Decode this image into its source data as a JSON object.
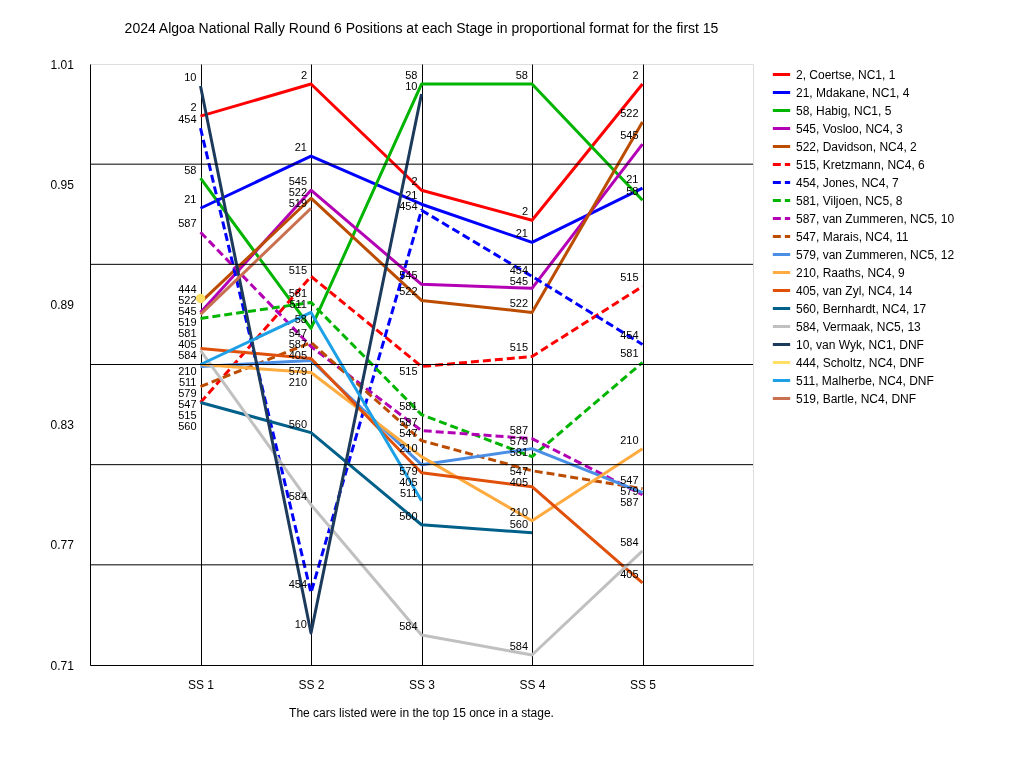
{
  "chart_data": {
    "type": "line",
    "title": "2024 Algoa National Rally Round 6  Positions at each Stage in proportional format for the first 15",
    "categories": [
      "SS 1",
      "SS 2",
      "SS 3",
      "SS 4",
      "SS 5"
    ],
    "ylim": [
      0.71,
      1.01
    ],
    "yticks": [
      0.71,
      0.77,
      0.83,
      0.89,
      0.95,
      1.01
    ],
    "grid": "x",
    "legend": "right",
    "marker": "none",
    "ref_lines": [
      {
        "axis": "y",
        "value": 0.76,
        "color": "#000000"
      },
      {
        "axis": "y",
        "value": 0.81,
        "color": "#000000"
      },
      {
        "axis": "y",
        "value": 0.86,
        "color": "#000000"
      },
      {
        "axis": "y",
        "value": 0.91,
        "color": "#000000"
      },
      {
        "axis": "y",
        "value": 0.96,
        "color": "#000000"
      }
    ],
    "annotations": [
      "The cars listed were in the top 15 once in a stage.",
      {
        "text": "2",
        "x": "SS 1",
        "y": 0.984
      },
      {
        "text": "2",
        "x": "SS 2",
        "y": 1.0
      },
      {
        "text": "2",
        "x": "SS 3",
        "y": 0.947
      },
      {
        "text": "2",
        "x": "SS 4",
        "y": 0.932
      },
      {
        "text": "2",
        "x": "SS 5",
        "y": 1.0
      },
      {
        "text": "21",
        "x": "SS 1",
        "y": 0.938
      },
      {
        "text": "21",
        "x": "SS 2",
        "y": 0.964
      },
      {
        "text": "21",
        "x": "SS 3",
        "y": 0.94
      },
      {
        "text": "21",
        "x": "SS 4",
        "y": 0.921
      },
      {
        "text": "21",
        "x": "SS 5",
        "y": 0.948
      },
      {
        "text": "58",
        "x": "SS 1",
        "y": 0.953
      },
      {
        "text": "58",
        "x": "SS 2",
        "y": 0.878
      },
      {
        "text": "58",
        "x": "SS 3",
        "y": 1.0
      },
      {
        "text": "58",
        "x": "SS 4",
        "y": 1.0
      },
      {
        "text": "58",
        "x": "SS 5",
        "y": 0.942
      },
      {
        "text": "545",
        "x": "SS 1",
        "y": 0.886
      },
      {
        "text": "545",
        "x": "SS 2",
        "y": 0.947
      },
      {
        "text": "545",
        "x": "SS 3",
        "y": 0.9
      },
      {
        "text": "545",
        "x": "SS 4",
        "y": 0.898
      },
      {
        "text": "545",
        "x": "SS 5",
        "y": 0.97
      },
      {
        "text": "522",
        "x": "SS 1",
        "y": 0.891
      },
      {
        "text": "522",
        "x": "SS 2",
        "y": 0.943
      },
      {
        "text": "522",
        "x": "SS 3",
        "y": 0.892
      },
      {
        "text": "522",
        "x": "SS 4",
        "y": 0.886
      },
      {
        "text": "522",
        "x": "SS 5",
        "y": 0.981
      },
      {
        "text": "515",
        "x": "SS 1",
        "y": 0.841
      },
      {
        "text": "515",
        "x": "SS 2",
        "y": 0.904
      },
      {
        "text": "515",
        "x": "SS 3",
        "y": 0.859
      },
      {
        "text": "515",
        "x": "SS 4",
        "y": 0.864
      },
      {
        "text": "515",
        "x": "SS 5",
        "y": 0.899
      },
      {
        "text": "454",
        "x": "SS 1",
        "y": 0.978
      },
      {
        "text": "454",
        "x": "SS 2",
        "y": 0.746
      },
      {
        "text": "454",
        "x": "SS 3",
        "y": 0.937
      },
      {
        "text": "454",
        "x": "SS 4",
        "y": 0.904
      },
      {
        "text": "454",
        "x": "SS 5",
        "y": 0.87
      },
      {
        "text": "581",
        "x": "SS 1",
        "y": 0.883
      },
      {
        "text": "581",
        "x": "SS 2",
        "y": 0.891
      },
      {
        "text": "581",
        "x": "SS 3",
        "y": 0.835
      },
      {
        "text": "581",
        "x": "SS 4",
        "y": 0.814
      },
      {
        "text": "581",
        "x": "SS 5",
        "y": 0.861
      },
      {
        "text": "587",
        "x": "SS 1",
        "y": 0.926
      },
      {
        "text": "587",
        "x": "SS 2",
        "y": 0.869
      },
      {
        "text": "587",
        "x": "SS 3",
        "y": 0.827
      },
      {
        "text": "587",
        "x": "SS 4",
        "y": 0.823
      },
      {
        "text": "587",
        "x": "SS 5",
        "y": 0.795
      },
      {
        "text": "547",
        "x": "SS 1",
        "y": 0.849
      },
      {
        "text": "547",
        "x": "SS 2",
        "y": 0.871
      },
      {
        "text": "547",
        "x": "SS 3",
        "y": 0.822
      },
      {
        "text": "547",
        "x": "SS 4",
        "y": 0.807
      },
      {
        "text": "547",
        "x": "SS 5",
        "y": 0.798
      },
      {
        "text": "579",
        "x": "SS 1",
        "y": 0.859
      },
      {
        "text": "579",
        "x": "SS 2",
        "y": 0.862
      },
      {
        "text": "579",
        "x": "SS 3",
        "y": 0.81
      },
      {
        "text": "579",
        "x": "SS 4",
        "y": 0.818
      },
      {
        "text": "579",
        "x": "SS 5",
        "y": 0.796
      },
      {
        "text": "210",
        "x": "SS 1",
        "y": 0.86
      },
      {
        "text": "210",
        "x": "SS 2",
        "y": 0.856
      },
      {
        "text": "210",
        "x": "SS 3",
        "y": 0.814
      },
      {
        "text": "210",
        "x": "SS 4",
        "y": 0.782
      },
      {
        "text": "210",
        "x": "SS 5",
        "y": 0.818
      },
      {
        "text": "405",
        "x": "SS 1",
        "y": 0.868
      },
      {
        "text": "405",
        "x": "SS 2",
        "y": 0.863
      },
      {
        "text": "405",
        "x": "SS 3",
        "y": 0.806
      },
      {
        "text": "405",
        "x": "SS 4",
        "y": 0.799
      },
      {
        "text": "405",
        "x": "SS 5",
        "y": 0.751
      },
      {
        "text": "560",
        "x": "SS 1",
        "y": 0.841
      },
      {
        "text": "560",
        "x": "SS 2",
        "y": 0.826
      },
      {
        "text": "560",
        "x": "SS 3",
        "y": 0.78
      },
      {
        "text": "560",
        "x": "SS 4",
        "y": 0.776
      },
      {
        "text": "584",
        "x": "SS 1",
        "y": 0.867
      },
      {
        "text": "584",
        "x": "SS 2",
        "y": 0.79
      },
      {
        "text": "584",
        "x": "SS 3",
        "y": 0.725
      },
      {
        "text": "584",
        "x": "SS 4",
        "y": 0.715
      },
      {
        "text": "584",
        "x": "SS 5",
        "y": 0.767
      },
      {
        "text": "10",
        "x": "SS 1",
        "y": 0.999
      },
      {
        "text": "10",
        "x": "SS 2",
        "y": 0.726
      },
      {
        "text": "10",
        "x": "SS 3",
        "y": 0.995
      },
      {
        "text": "444",
        "x": "SS 1",
        "y": 0.893
      },
      {
        "text": "511",
        "x": "SS 1",
        "y": 0.86
      },
      {
        "text": "511",
        "x": "SS 2",
        "y": 0.886
      },
      {
        "text": "511",
        "x": "SS 3",
        "y": 0.792
      },
      {
        "text": "519",
        "x": "SS 1",
        "y": 0.885
      },
      {
        "text": "519",
        "x": "SS 2",
        "y": 0.938
      }
    ],
    "series": [
      {
        "name": "2, Coertse, NC1, 1",
        "color": "#ff0000",
        "line_style": "solid",
        "values": [
          0.984,
          1.0,
          0.947,
          0.932,
          1.0
        ]
      },
      {
        "name": "21, Mdakane, NC1, 4",
        "color": "#0000ff",
        "line_style": "solid",
        "values": [
          0.938,
          0.964,
          0.94,
          0.921,
          0.948
        ]
      },
      {
        "name": "58, Habig, NC1, 5",
        "color": "#00b400",
        "line_style": "solid",
        "values": [
          0.953,
          0.878,
          1.0,
          1.0,
          0.942
        ]
      },
      {
        "name": "545, Vosloo, NC4, 3",
        "color": "#b400b4",
        "line_style": "solid",
        "values": [
          0.886,
          0.947,
          0.9,
          0.898,
          0.97
        ]
      },
      {
        "name": "522, Davidson, NC4, 2",
        "color": "#bc4c00",
        "line_style": "solid",
        "values": [
          0.891,
          0.943,
          0.892,
          0.886,
          0.981
        ]
      },
      {
        "name": "515, Kretzmann, NC4, 6",
        "color": "#ff0000",
        "line_style": "dashed",
        "values": [
          0.841,
          0.904,
          0.859,
          0.864,
          0.899
        ]
      },
      {
        "name": "454, Jones, NC4, 7",
        "color": "#0000ff",
        "line_style": "dashed",
        "values": [
          0.978,
          0.746,
          0.937,
          0.904,
          0.87
        ]
      },
      {
        "name": "581, Viljoen, NC5, 8",
        "color": "#00b400",
        "line_style": "dashed",
        "values": [
          0.883,
          0.891,
          0.835,
          0.814,
          0.861
        ]
      },
      {
        "name": "587, van Zummeren, NC5, 10",
        "color": "#b400b4",
        "line_style": "dashed",
        "values": [
          0.926,
          0.869,
          0.827,
          0.823,
          0.795
        ]
      },
      {
        "name": "547, Marais, NC4, 11",
        "color": "#bc4c00",
        "line_style": "dashed",
        "values": [
          0.849,
          0.871,
          0.822,
          0.807,
          0.798
        ]
      },
      {
        "name": "579, van Zummeren, NC5, 12",
        "color": "#4a8ee6",
        "line_style": "solid",
        "values": [
          0.859,
          0.862,
          0.81,
          0.818,
          0.796
        ]
      },
      {
        "name": "210, Raaths, NC4, 9",
        "color": "#ffab40",
        "line_style": "solid",
        "values": [
          0.86,
          0.856,
          0.814,
          0.782,
          0.818
        ]
      },
      {
        "name": "405, van Zyl, NC4, 14",
        "color": "#e0500a",
        "line_style": "solid",
        "values": [
          0.868,
          0.863,
          0.806,
          0.799,
          0.751
        ]
      },
      {
        "name": "560, Bernhardt, NC4, 17",
        "color": "#00608a",
        "line_style": "solid",
        "values": [
          0.841,
          0.826,
          0.78,
          0.776,
          null
        ]
      },
      {
        "name": "584, Vermaak, NC5, 13",
        "color": "#c0c0c0",
        "line_style": "solid",
        "values": [
          0.867,
          0.79,
          0.725,
          0.715,
          0.767
        ]
      },
      {
        "name": "10, van Wyk, NC1,  DNF",
        "color": "#1c3a5c",
        "line_style": "solid",
        "values": [
          0.999,
          0.726,
          0.995,
          null,
          null
        ]
      },
      {
        "name": "444, Scholtz, NC4,  DNF",
        "color": "#ffe066",
        "line_style": "solid",
        "marker": "circle",
        "values": [
          0.893,
          null,
          null,
          null,
          null
        ]
      },
      {
        "name": "511, Malherbe, NC4,  DNF",
        "color": "#1ea0e6",
        "line_style": "solid",
        "values": [
          0.86,
          0.886,
          0.792,
          null,
          null
        ]
      },
      {
        "name": "519, Bartle, NC4,  DNF",
        "color": "#c87050",
        "line_style": "solid",
        "values": [
          0.885,
          0.938,
          null,
          null,
          null
        ]
      }
    ]
  }
}
